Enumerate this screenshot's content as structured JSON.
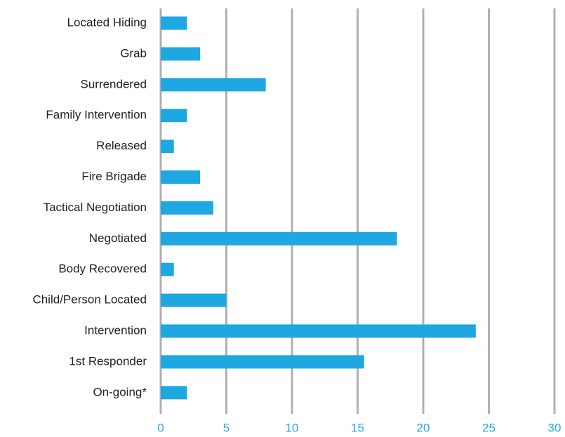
{
  "chart_data": {
    "type": "bar",
    "orientation": "horizontal",
    "categories": [
      "Located Hiding",
      "Grab",
      "Surrendered",
      "Family Intervention",
      "Released",
      "Fire Brigade",
      "Tactical Negotiation",
      "Negotiated",
      "Body Recovered",
      "Child/Person Located",
      "Intervention",
      "1st Responder",
      "On-going*"
    ],
    "values": [
      2,
      3,
      8,
      2,
      1,
      3,
      4,
      18,
      1,
      5,
      24,
      15.5,
      2
    ],
    "color": "#1ea7e1",
    "xlim": [
      0,
      30
    ],
    "xticks": [
      0,
      5,
      10,
      15,
      20,
      25,
      30
    ],
    "grid": true
  }
}
